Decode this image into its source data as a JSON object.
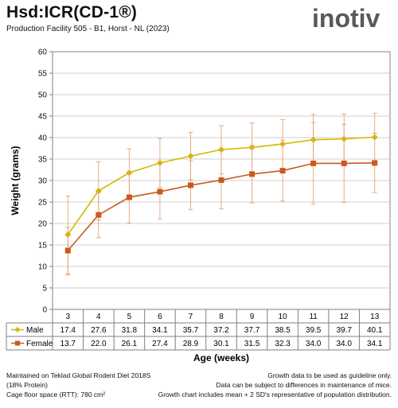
{
  "header": {
    "title": "Hsd:ICR(CD-1®)",
    "subtitle": "Production Facility 505 - B1, Horst - NL (2023)",
    "logo_text": "inotiv"
  },
  "colors": {
    "male": "#d4b800",
    "female": "#c85a1e",
    "error_bar": "#e8a07a",
    "grid": "#bfbfbf",
    "logo_main": "#58595b",
    "logo_accent": "#e87722"
  },
  "chart_data": {
    "type": "line",
    "title": "",
    "xlabel": "Age (weeks)",
    "ylabel": "Weight (grams)",
    "ylim": [
      0,
      60
    ],
    "yticks": [
      0,
      5,
      10,
      15,
      20,
      25,
      30,
      35,
      40,
      45,
      50,
      55,
      60
    ],
    "categories": [
      "3",
      "4",
      "5",
      "6",
      "7",
      "8",
      "9",
      "10",
      "11",
      "12",
      "13"
    ],
    "grid": true,
    "legend": "table-below",
    "series": [
      {
        "name": "Male",
        "marker": "diamond",
        "values": [
          17.4,
          27.6,
          31.8,
          34.1,
          35.7,
          37.2,
          37.7,
          38.5,
          39.5,
          39.7,
          40.1
        ],
        "labels": [
          "17.4",
          "27.6",
          "31.8",
          "34.1",
          "35.7",
          "37.2",
          "37.7",
          "38.5",
          "39.5",
          "39.7",
          "40.1"
        ],
        "error_high": [
          26.4,
          34.4,
          37.4,
          39.8,
          41.2,
          42.8,
          43.4,
          44.2,
          45.4,
          45.5,
          45.7
        ],
        "error_low": [
          8.3,
          20.8,
          26.2,
          28.4,
          30.2,
          31.6,
          32.0,
          32.8,
          33.6,
          33.9,
          41.0
        ]
      },
      {
        "name": "Female",
        "marker": "square",
        "values": [
          13.7,
          22.0,
          26.1,
          27.4,
          28.9,
          30.1,
          31.5,
          32.3,
          34.0,
          34.0,
          34.1
        ],
        "labels": [
          "13.7",
          "22.0",
          "26.1",
          "27.4",
          "28.9",
          "30.1",
          "31.5",
          "32.3",
          "34.0",
          "34.0",
          "34.1"
        ],
        "error_high": [
          19.1,
          27.2,
          32.1,
          33.9,
          34.6,
          36.9,
          38.2,
          39.4,
          43.5,
          43.1,
          41.0
        ],
        "error_low": [
          8.0,
          16.7,
          20.1,
          21.0,
          23.2,
          23.4,
          24.8,
          25.2,
          24.5,
          24.9,
          27.2
        ]
      }
    ]
  },
  "footer": {
    "left": [
      "Maintained on Teklad Global Rodent Diet 2018S",
      "(18% Protein)",
      "Cage floor space (RTT): 780 cm²"
    ],
    "right": [
      "Growth data to be used as guideline only.",
      "Data can be subject to differences in maintenance of mice.",
      "Growth chart includes mean + 2 SD's representative of population distribution."
    ]
  }
}
